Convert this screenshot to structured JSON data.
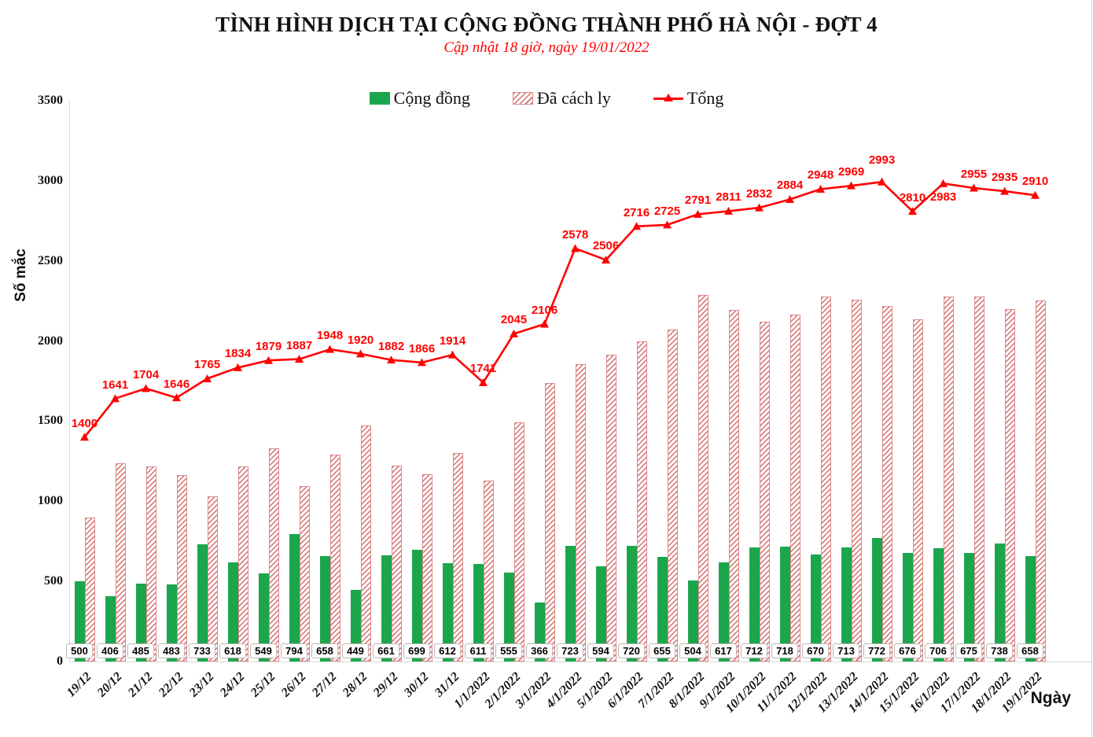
{
  "title": "TÌNH HÌNH DỊCH TẠI CỘNG ĐỒNG THÀNH PHỐ HÀ NỘI - ĐỢT 4",
  "subtitle": "Cập nhật 18 giờ, ngày 19/01/2022",
  "colors": {
    "community_green": "#1ca64c",
    "hatch_red": "#d66b6b",
    "hatch_border": "#d98a8a",
    "line_red": "#ff0000",
    "axis_gray": "#d9d9d9",
    "text_black": "#111111"
  },
  "chart_data": {
    "type": "bar",
    "subtype": "grouped bars with line overlay",
    "title": "TÌNH HÌNH DỊCH TẠI CỘNG ĐỒNG THÀNH PHỐ HÀ NỘI - ĐỢT 4",
    "subtitle": "Cập nhật 18 giờ, ngày 19/01/2022",
    "xlabel": "Ngày",
    "ylabel": "Số mắc",
    "ylim": [
      0,
      3500
    ],
    "yticks": [
      0,
      500,
      1000,
      1500,
      2000,
      2500,
      3000,
      3500
    ],
    "grid": false,
    "legend_position": "top",
    "categories": [
      "19/12",
      "20/12",
      "21/12",
      "22/12",
      "23/12",
      "24/12",
      "25/12",
      "26/12",
      "27/12",
      "28/12",
      "29/12",
      "30/12",
      "31/12",
      "1/1/2022",
      "2/1/2022",
      "3/1/2022",
      "4/1/2022",
      "5/1/2022",
      "6/1/2022",
      "7/1/2022",
      "8/1/2022",
      "9/1/2022",
      "10/1/2022",
      "11/1/2022",
      "12/1/2022",
      "13/1/2022",
      "14/1/2022",
      "15/1/2022",
      "16/1/2022",
      "17/1/2022",
      "18/1/2022",
      "19/1/2022"
    ],
    "series": [
      {
        "name": "Cộng đồng",
        "type": "bar",
        "style": "solid-green",
        "values": [
          500,
          406,
          485,
          483,
          733,
          618,
          549,
          794,
          658,
          449,
          661,
          699,
          612,
          611,
          555,
          366,
          723,
          594,
          720,
          655,
          504,
          617,
          712,
          718,
          670,
          713,
          772,
          676,
          706,
          675,
          738,
          658
        ],
        "labels_shown": true
      },
      {
        "name": "Đã cách ly",
        "type": "bar",
        "style": "red-diagonal-hatch",
        "values": [
          900,
          1235,
          1219,
          1163,
          1032,
          1216,
          1330,
          1093,
          1290,
          1471,
          1221,
          1167,
          1302,
          1130,
          1490,
          1740,
          1855,
          1912,
          1996,
          2070,
          2287,
          2194,
          2120,
          2166,
          2278,
          2256,
          2221,
          2134,
          2277,
          2280,
          2197,
          2252
        ],
        "labels_shown": false
      },
      {
        "name": "Tổng",
        "type": "line",
        "style": "red-line-triangle-markers",
        "values": [
          1400,
          1641,
          1704,
          1646,
          1765,
          1834,
          1879,
          1887,
          1948,
          1920,
          1882,
          1866,
          1914,
          1741,
          2045,
          2106,
          2578,
          2506,
          2716,
          2725,
          2791,
          2811,
          2832,
          2884,
          2948,
          2969,
          2993,
          2810,
          2983,
          2955,
          2935,
          2910
        ],
        "labels_shown": true
      }
    ]
  }
}
